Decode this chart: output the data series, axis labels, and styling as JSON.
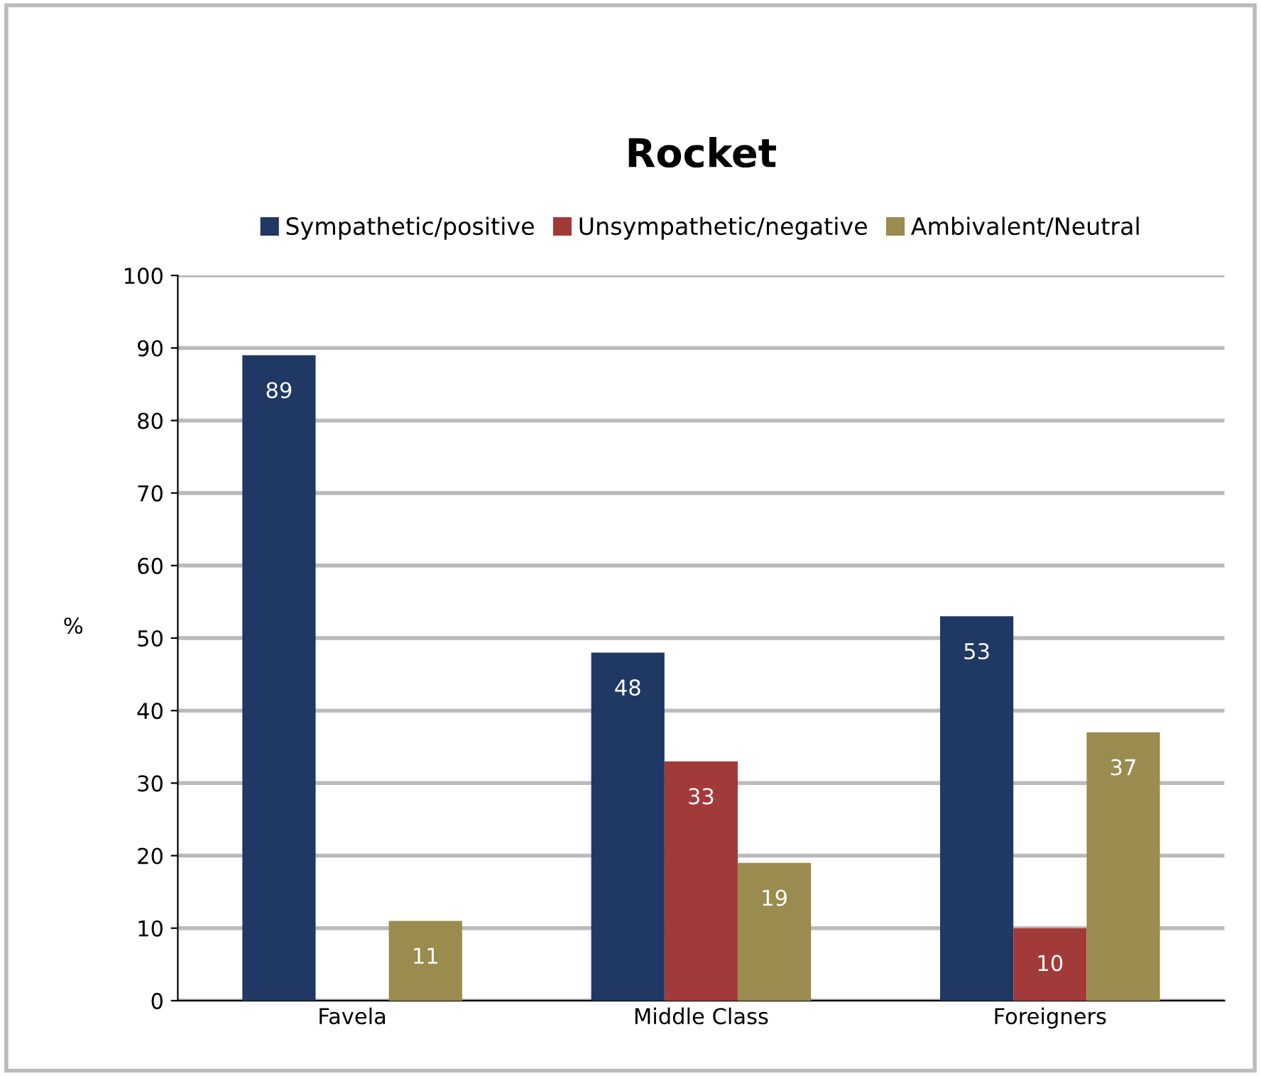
{
  "chart_data": {
    "type": "bar",
    "title": "Rocket",
    "ylabel": "%",
    "categories": [
      "Favela",
      "Middle Class",
      "Foreigners"
    ],
    "series": [
      {
        "name": "Sympathetic/positive",
        "color": "#1f3864",
        "values": [
          89,
          48,
          53
        ],
        "value_labels": [
          "89",
          "48",
          "53"
        ]
      },
      {
        "name": "Unsympathetic/negative",
        "color": "#a33a3a",
        "values": [
          0,
          33,
          10
        ],
        "value_labels": [
          null,
          "33",
          "10"
        ]
      },
      {
        "name": "Ambivalent/Neutral",
        "color": "#9a8b4f",
        "values": [
          11,
          19,
          37
        ],
        "value_labels": [
          "11",
          "19",
          "37"
        ]
      }
    ],
    "ylim": [
      0,
      100
    ],
    "yticks": [
      0,
      10,
      20,
      30,
      40,
      50,
      60,
      70,
      80,
      90,
      100
    ],
    "grid": "y",
    "legend": "top"
  }
}
